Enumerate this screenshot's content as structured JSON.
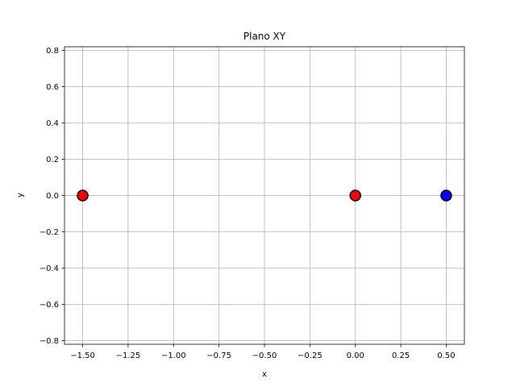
{
  "chart_data": {
    "type": "scatter",
    "title": "Plano XY",
    "xlabel": "x",
    "ylabel": "y",
    "xlim": [
      -1.6,
      0.6
    ],
    "ylim": [
      -0.82,
      0.82
    ],
    "grid": true,
    "x_ticks": [
      -1.5,
      -1.25,
      -1.0,
      -0.75,
      -0.5,
      -0.25,
      0.0,
      0.25,
      0.5
    ],
    "x_tick_labels": [
      "−1.50",
      "−1.25",
      "−1.00",
      "−0.75",
      "−0.50",
      "−0.25",
      "0.00",
      "0.25",
      "0.50"
    ],
    "y_ticks": [
      -0.8,
      -0.6,
      -0.4,
      -0.2,
      0.0,
      0.2,
      0.4,
      0.6,
      0.8
    ],
    "y_tick_labels": [
      "−0.8",
      "−0.6",
      "−0.4",
      "−0.2",
      "0.0",
      "0.2",
      "0.4",
      "0.6",
      "0.8"
    ],
    "points": [
      {
        "x": -1.5,
        "y": 0.0,
        "color": "#ff0000"
      },
      {
        "x": 0.0,
        "y": 0.0,
        "color": "#ff0000"
      },
      {
        "x": 0.5,
        "y": 0.0,
        "color": "#0000ff"
      }
    ]
  }
}
